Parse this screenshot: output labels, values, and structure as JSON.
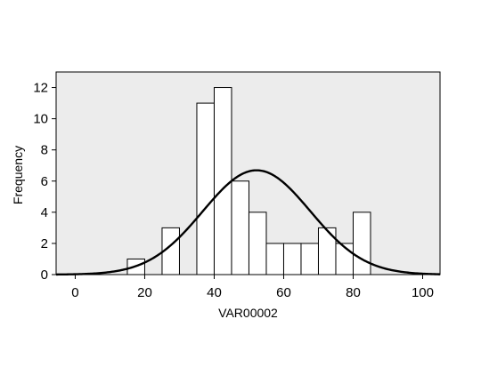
{
  "chart_data": {
    "type": "bar",
    "title": "",
    "xlabel": "VAR00002",
    "ylabel": "Frequency",
    "xlim": [
      -5.5,
      105
    ],
    "ylim": [
      0,
      13
    ],
    "x_ticks": [
      0,
      20,
      40,
      60,
      80,
      100
    ],
    "y_ticks": [
      0,
      2,
      4,
      6,
      8,
      10,
      12
    ],
    "bin_width": 5,
    "bins": [
      {
        "start": 10,
        "end": 15,
        "count": 0
      },
      {
        "start": 15,
        "end": 20,
        "count": 1
      },
      {
        "start": 20,
        "end": 25,
        "count": 0
      },
      {
        "start": 25,
        "end": 30,
        "count": 3
      },
      {
        "start": 30,
        "end": 35,
        "count": 0
      },
      {
        "start": 35,
        "end": 40,
        "count": 11
      },
      {
        "start": 40,
        "end": 45,
        "count": 12
      },
      {
        "start": 45,
        "end": 50,
        "count": 6
      },
      {
        "start": 50,
        "end": 55,
        "count": 4
      },
      {
        "start": 55,
        "end": 60,
        "count": 2
      },
      {
        "start": 60,
        "end": 65,
        "count": 2
      },
      {
        "start": 65,
        "end": 70,
        "count": 2
      },
      {
        "start": 70,
        "end": 75,
        "count": 3
      },
      {
        "start": 75,
        "end": 80,
        "count": 2
      },
      {
        "start": 80,
        "end": 85,
        "count": 4
      }
    ],
    "normal_curve": {
      "mean": 52.2,
      "sd": 15.5,
      "n": 52
    },
    "plot_background": "#ececec",
    "bar_fill": "#ffffff",
    "curve_color": "#000000",
    "grid": false
  }
}
